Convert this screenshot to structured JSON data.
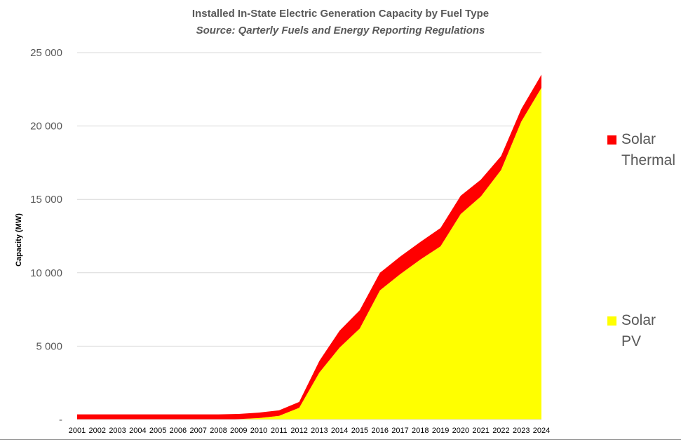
{
  "chart_data": {
    "type": "area",
    "stacked": true,
    "title": "Installed In-State Electric Generation Capacity by Fuel Type",
    "subtitle": "Source: Qarterly Fuels and Energy Reporting Regulations",
    "xlabel": "",
    "ylabel": "Capacity (MW)",
    "ylim": [
      0,
      25000
    ],
    "yticks": [
      0,
      5000,
      10000,
      15000,
      20000,
      25000
    ],
    "ytick_labels": [
      "-",
      "5 000",
      "10 000",
      "15 000",
      "20 000",
      "25 000"
    ],
    "categories": [
      "2001",
      "2002",
      "2003",
      "2004",
      "2005",
      "2006",
      "2007",
      "2008",
      "2009",
      "2010",
      "2011",
      "2012",
      "2013",
      "2014",
      "2015",
      "2016",
      "2017",
      "2018",
      "2019",
      "2020",
      "2021",
      "2022",
      "2023",
      "2024"
    ],
    "series": [
      {
        "name": "Solar PV",
        "color": "#FFFF00",
        "values": [
          0,
          0,
          0,
          0,
          0,
          0,
          0,
          0,
          30,
          100,
          250,
          800,
          3200,
          4900,
          6200,
          8800,
          9900,
          10900,
          11800,
          14000,
          15200,
          17000,
          20300,
          22600
        ]
      },
      {
        "name": "Solar Thermal",
        "color": "#FF0000",
        "values": [
          350,
          350,
          350,
          350,
          350,
          350,
          350,
          350,
          350,
          370,
          380,
          400,
          800,
          1150,
          1250,
          1200,
          1200,
          1200,
          1250,
          1250,
          1150,
          950,
          850,
          900
        ]
      }
    ],
    "legend": [
      {
        "name": "Solar\nThermal",
        "lines": [
          "Solar",
          "Thermal"
        ],
        "color": "#FF0000"
      },
      {
        "name": "Solar\nPV",
        "lines": [
          "Solar",
          "PV"
        ],
        "color": "#FFFF00"
      }
    ],
    "legend_position": "right",
    "grid": true
  }
}
